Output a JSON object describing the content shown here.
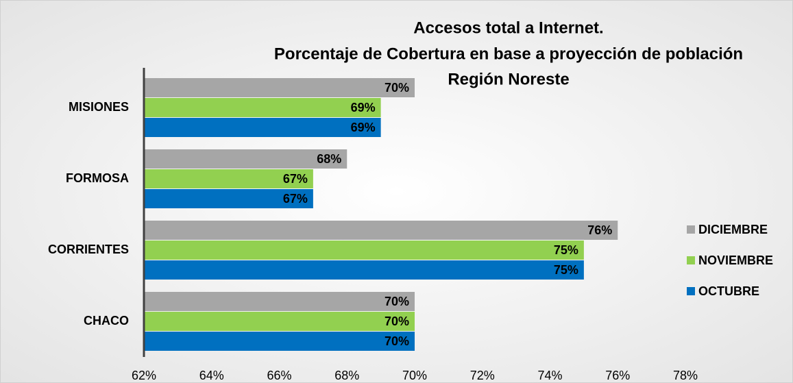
{
  "chart_data": {
    "type": "barh",
    "title_lines": [
      "Accesos total a Internet.",
      "Porcentaje de Cobertura en base a proyección de población",
      "Región Noreste"
    ],
    "categories": [
      "MISIONES",
      "FORMOSA",
      "CORRIENTES",
      "CHACO"
    ],
    "series": [
      {
        "name": "DICIEMBRE",
        "color": "#a6a6a6",
        "values": [
          70,
          68,
          76,
          70
        ],
        "value_labels": [
          "70%",
          "68%",
          "76%",
          "70%"
        ]
      },
      {
        "name": "NOVIEMBRE",
        "color": "#92d050",
        "values": [
          69,
          67,
          75,
          70
        ],
        "value_labels": [
          "69%",
          "67%",
          "75%",
          "70%"
        ]
      },
      {
        "name": "OCTUBRE",
        "color": "#0070c0",
        "values": [
          69,
          67,
          75,
          70
        ],
        "value_labels": [
          "69%",
          "67%",
          "75%",
          "70%"
        ]
      }
    ],
    "xlim": [
      62,
      78
    ],
    "xticks": [
      {
        "value": 62,
        "label": "62%"
      },
      {
        "value": 64,
        "label": "64%"
      },
      {
        "value": 66,
        "label": "66%"
      },
      {
        "value": 68,
        "label": "68%"
      },
      {
        "value": 70,
        "label": "70%"
      },
      {
        "value": 72,
        "label": "72%"
      },
      {
        "value": 74,
        "label": "74%"
      },
      {
        "value": 76,
        "label": "76%"
      },
      {
        "value": 78,
        "label": "78%"
      }
    ],
    "legend": "right"
  }
}
